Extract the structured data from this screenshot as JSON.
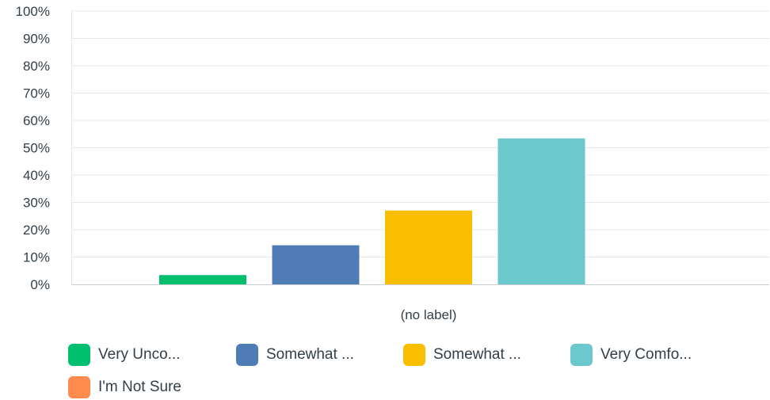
{
  "chart_data": {
    "type": "bar",
    "categories": [
      "(no label)"
    ],
    "series": [
      {
        "name": "Very Unco...",
        "values": [
          3.4
        ],
        "color": "#00bf6f"
      },
      {
        "name": "Somewhat ...",
        "values": [
          14.3
        ],
        "color": "#507cb6"
      },
      {
        "name": "Somewhat ...",
        "values": [
          27.0
        ],
        "color": "#f9be00"
      },
      {
        "name": "Very Comfo...",
        "values": [
          53.4
        ],
        "color": "#6bc8cd"
      },
      {
        "name": "I'm Not Sure",
        "values": [
          0
        ],
        "color": "#ff8b4f"
      }
    ],
    "title": "",
    "xlabel": "",
    "ylabel": "",
    "ylim": [
      0,
      100
    ],
    "yticks": [
      "0%",
      "10%",
      "20%",
      "30%",
      "40%",
      "50%",
      "60%",
      "70%",
      "80%",
      "90%",
      "100%"
    ],
    "grid": true,
    "legend": "bottom"
  }
}
